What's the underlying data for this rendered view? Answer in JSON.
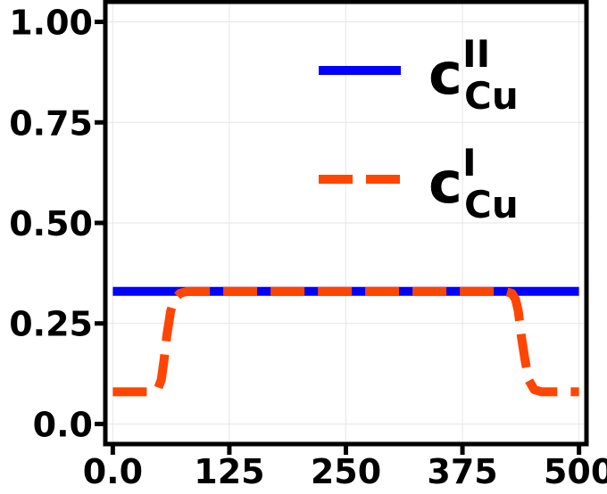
{
  "chart_data": {
    "type": "line",
    "title": "",
    "xlabel": "",
    "ylabel": "",
    "xlim": [
      -8,
      508
    ],
    "ylim": [
      -0.05,
      1.05
    ],
    "xticks": [
      0,
      125,
      250,
      375,
      500
    ],
    "xtick_labels": [
      "0.0",
      "125",
      "250",
      "375",
      "500"
    ],
    "yticks": [
      0.0,
      0.25,
      0.5,
      0.75,
      1.0
    ],
    "ytick_labels": [
      "0.0",
      "0.25",
      "0.50",
      "0.75",
      "1.00"
    ],
    "grid": true,
    "legend_position": "top-right",
    "series": [
      {
        "name": "c_Cu^II",
        "label_main": "c",
        "label_sup": "II",
        "label_sub": "Cu",
        "color": "#0000ff",
        "style": "solid",
        "x": [
          0,
          500
        ],
        "y": [
          0.33,
          0.33
        ]
      },
      {
        "name": "c_Cu^I",
        "label_main": "c",
        "label_sup": "I",
        "label_sub": "Cu",
        "color": "#ff4500",
        "style": "dashed",
        "x": [
          0,
          40,
          48,
          52,
          55,
          58,
          62,
          66,
          72,
          80,
          100,
          250,
          400,
          420,
          428,
          432,
          435,
          438,
          442,
          446,
          452,
          460,
          500
        ],
        "y": [
          0.08,
          0.08,
          0.085,
          0.11,
          0.16,
          0.22,
          0.28,
          0.31,
          0.325,
          0.33,
          0.33,
          0.33,
          0.33,
          0.33,
          0.325,
          0.31,
          0.28,
          0.22,
          0.16,
          0.11,
          0.085,
          0.08,
          0.08
        ]
      }
    ]
  }
}
